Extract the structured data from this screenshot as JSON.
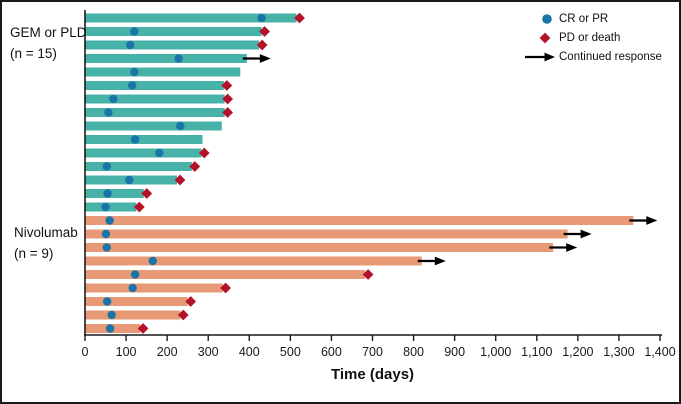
{
  "figure": {
    "background": "#ffffff",
    "border_color": "#1a1a1a"
  },
  "chart_data": {
    "type": "bar",
    "subtype": "swimmer",
    "title": "",
    "xlabel": "Time (days)",
    "xlim": [
      0,
      1400
    ],
    "axis_color": "#1a1a1a",
    "grid": "off",
    "legend_position": "top-right",
    "xticks": [
      {
        "value": 0,
        "label": "0"
      },
      {
        "value": 100,
        "label": "100"
      },
      {
        "value": 200,
        "label": "200"
      },
      {
        "value": 300,
        "label": "300"
      },
      {
        "value": 400,
        "label": "400"
      },
      {
        "value": 500,
        "label": "500"
      },
      {
        "value": 600,
        "label": "600"
      },
      {
        "value": 700,
        "label": "700"
      },
      {
        "value": 800,
        "label": "800"
      },
      {
        "value": 900,
        "label": "900"
      },
      {
        "value": 1000,
        "label": "1,000"
      },
      {
        "value": 1100,
        "label": "1,100"
      },
      {
        "value": 1200,
        "label": "1,200"
      },
      {
        "value": 1300,
        "label": "1,300"
      },
      {
        "value": 1400,
        "label": "1,400"
      }
    ],
    "legend": [
      {
        "marker": "circle-icon",
        "label": "CR or PR",
        "color": "#1b74a8"
      },
      {
        "marker": "diamond-icon",
        "label": "PD or death",
        "color": "#b3122a"
      },
      {
        "marker": "arrow-icon",
        "label": "Continued response",
        "color": "#000000"
      }
    ],
    "groups": [
      {
        "name": "GEM or PLD",
        "n_label": "(n = 15)",
        "color": "#47b2a8",
        "bars": [
          {
            "duration_days": 515,
            "response_marker_day": 430,
            "end_event": "pd"
          },
          {
            "duration_days": 430,
            "response_marker_day": 120,
            "end_event": "pd"
          },
          {
            "duration_days": 424,
            "response_marker_day": 110,
            "end_event": "pd"
          },
          {
            "duration_days": 394,
            "response_marker_day": 228,
            "end_event": "arrow"
          },
          {
            "duration_days": 378,
            "response_marker_day": 120,
            "end_event": "none"
          },
          {
            "duration_days": 338,
            "response_marker_day": 115,
            "end_event": "pd"
          },
          {
            "duration_days": 340,
            "response_marker_day": 69,
            "end_event": "pd"
          },
          {
            "duration_days": 340,
            "response_marker_day": 57,
            "end_event": "pd"
          },
          {
            "duration_days": 333,
            "response_marker_day": 232,
            "end_event": "none"
          },
          {
            "duration_days": 286,
            "response_marker_day": 122,
            "end_event": "none"
          },
          {
            "duration_days": 283,
            "response_marker_day": 181,
            "end_event": "pd"
          },
          {
            "duration_days": 260,
            "response_marker_day": 53,
            "end_event": "pd"
          },
          {
            "duration_days": 224,
            "response_marker_day": 108,
            "end_event": "pd"
          },
          {
            "duration_days": 143,
            "response_marker_day": 55,
            "end_event": "pd"
          },
          {
            "duration_days": 125,
            "response_marker_day": 50,
            "end_event": "pd"
          }
        ]
      },
      {
        "name": "Nivolumab",
        "n_label": "(n = 9)",
        "color": "#e89a76",
        "bars": [
          {
            "duration_days": 1335,
            "response_marker_day": 60,
            "end_event": "arrow"
          },
          {
            "duration_days": 1175,
            "response_marker_day": 51,
            "end_event": "arrow"
          },
          {
            "duration_days": 1140,
            "response_marker_day": 53,
            "end_event": "arrow"
          },
          {
            "duration_days": 820,
            "response_marker_day": 165,
            "end_event": "arrow"
          },
          {
            "duration_days": 682,
            "response_marker_day": 122,
            "end_event": "pd"
          },
          {
            "duration_days": 335,
            "response_marker_day": 116,
            "end_event": "pd"
          },
          {
            "duration_days": 250,
            "response_marker_day": 54,
            "end_event": "pd"
          },
          {
            "duration_days": 232,
            "response_marker_day": 65,
            "end_event": "pd"
          },
          {
            "duration_days": 134,
            "response_marker_day": 61,
            "end_event": "pd"
          }
        ]
      }
    ]
  }
}
